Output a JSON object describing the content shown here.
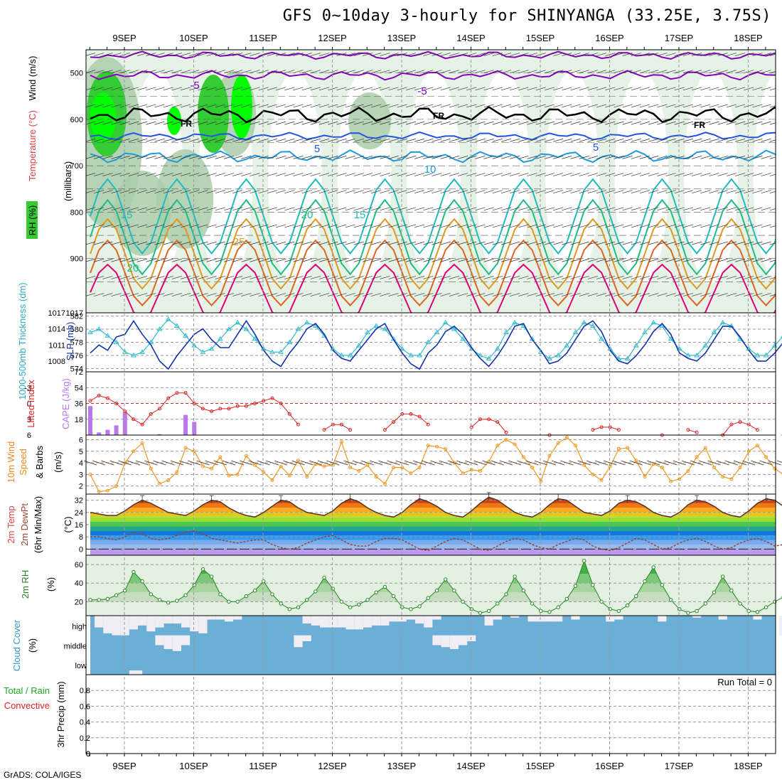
{
  "header": {
    "title": "GFS 0~10day 3-hourly for SHINYANGA (33.25E, 3.75S)",
    "footer": "GrADS: COLA/IGES"
  },
  "date_labels": [
    "9SEP",
    "10SEP",
    "11SEP",
    "12SEP",
    "13SEP",
    "14SEP",
    "15SEP",
    "16SEP",
    "17SEP",
    "18SEP"
  ],
  "panel_labels": {
    "p1_rh": "RH (%)",
    "p1_temp": "Temperature (°C)",
    "p1_wind": "Wind (m/s)",
    "p1_mb": "(millibars)",
    "p2_thk": "1000-500mb Thickness (dm)",
    "p2_slp": "SLP (mb)",
    "p3_li": "Lifted Index",
    "p3_cape": "CAPE (J/kg)",
    "p4_a": "10m Wind",
    "p4_b": "Speed",
    "p4_c": "& Barbs",
    "p4_unit": "(m/s)",
    "p5_a": "2m Temp",
    "p5_b": "2m DewPt",
    "p5_c": "(6hr Min/Max)",
    "p5_unit": "(°C)",
    "p6_a": "2m RH",
    "p6_unit": "(%)",
    "p7_a": "Cloud Cover",
    "p7_unit": "(%)",
    "p8_a": "Total / Rain",
    "p8_b": "Convective",
    "p8_unit": "3hr Precip (mm)"
  },
  "run_total": "Run Total = 0",
  "chart_data": [
    {
      "type": "heatmap",
      "name_hint": "pressure-time cross section",
      "y_ticks": [
        "500",
        "600",
        "700",
        "800",
        "900",
        "1017"
      ],
      "ylim": [
        1017,
        450
      ],
      "contour_labels": [
        "-5",
        "-5",
        "FR",
        "FR",
        "FR",
        "5",
        "5",
        "10",
        "15",
        "15",
        "20",
        "20",
        "25"
      ],
      "temp_levels_c": [
        -5,
        0,
        5,
        10,
        15,
        20,
        25
      ],
      "colors": {
        "rh_high": "#00ff00",
        "rh_mid": "#33cc33",
        "rh_low": "#aaccaa",
        "rh_bg": "#e6f2e6",
        "t_neg5": "#8800bb",
        "t_0": "#000000",
        "t_5": "#2255dd",
        "t_10": "#2299dd",
        "t_15": "#22bbbb",
        "t_20": "#22bb88",
        "t_25": "#dd9922",
        "t_30": "#dd6622",
        "t_35": "#dd0077"
      }
    },
    {
      "type": "line",
      "name_hint": "thickness and SLP",
      "y_ticks_left": [
        "574",
        "576",
        "578",
        "580",
        "582"
      ],
      "y_ticks_right": [
        "1008",
        "1011",
        "1014",
        "1017"
      ],
      "series": [
        {
          "name": "SLP (mb)",
          "color": "#1133aa",
          "values": [
            1009.5,
            1011,
            1010,
            1012.5,
            1013,
            1015.5,
            1013,
            1011,
            1008,
            1006.5,
            1009,
            1011,
            1013,
            1014,
            1012,
            1010.5,
            1010.5,
            1013,
            1015.5,
            1013,
            1010,
            1008,
            1007,
            1009.5,
            1011.5,
            1014,
            1015,
            1013,
            1010,
            1008.5,
            1008,
            1010,
            1012,
            1014,
            1015,
            1012,
            1009.5,
            1007.5,
            1006.5,
            1009.5,
            1011,
            1013.5,
            1014.5,
            1013,
            1010.5,
            1008.5,
            1007,
            1009,
            1011.5,
            1014.5,
            1015,
            1012,
            1010,
            1007.5,
            1008,
            1009.5,
            1012,
            1014.5,
            1015.5,
            1013.5,
            1010,
            1008,
            1007.5,
            1009,
            1011,
            1013.5,
            1015,
            1013,
            1009.5,
            1008.5,
            1008,
            1009.5,
            1012,
            1014.5,
            1014.5,
            1012.5,
            1010,
            1008,
            1008,
            1009.5,
            1011.5,
            1014,
            1015.5
          ]
        },
        {
          "name": "Thickness (dm)",
          "color": "#33bbcc",
          "values": [
            579.5,
            580,
            579,
            578,
            576.5,
            576,
            576.5,
            578,
            580,
            581.5,
            580.5,
            579,
            577.5,
            576.5,
            577,
            578.5,
            580,
            581,
            580,
            578.5,
            577,
            576.5,
            576.5,
            578,
            580,
            581,
            580.5,
            579,
            577,
            576,
            576,
            577.5,
            579.5,
            580.5,
            580,
            578.5,
            577,
            576,
            576,
            578,
            579.5,
            581,
            580,
            578.5,
            577,
            576,
            575.5,
            577,
            579.5,
            581,
            580.5,
            578.5,
            576.5,
            575.5,
            576,
            577.5,
            579.5,
            581,
            580.5,
            578.5,
            577,
            575.5,
            575.5,
            577.5,
            579.5,
            581,
            580.5,
            578.5,
            577,
            576,
            576,
            577.5,
            579.5,
            581,
            580.5,
            578.5,
            577,
            576,
            576,
            577.5,
            579,
            580,
            578.5
          ]
        }
      ]
    },
    {
      "type": "bar",
      "name_hint": "CAPE and Lifted Index",
      "y_ticks_left": [
        "-3",
        "0",
        "3",
        "6"
      ],
      "y_ticks_right": [
        "18",
        "36",
        "54",
        "72"
      ],
      "series": [
        {
          "name": "CAPE (J/kg)",
          "color": "#bb77ee",
          "values": [
            33,
            3,
            6,
            11,
            26,
            0,
            0,
            0,
            1,
            0,
            0,
            23,
            15,
            0,
            0,
            0,
            0,
            0,
            0,
            0,
            0,
            0,
            0,
            0,
            0,
            0,
            0,
            0,
            0,
            0,
            0,
            0,
            0,
            0,
            0,
            0,
            0,
            0,
            0,
            0,
            0,
            0,
            0,
            0,
            0,
            0,
            0,
            0,
            0,
            0,
            0,
            0,
            0,
            0,
            0,
            0,
            0,
            0,
            0,
            0,
            0,
            0,
            0,
            0,
            0,
            0,
            0,
            0,
            0,
            0,
            0,
            0,
            0,
            0,
            0,
            0,
            0,
            0,
            0,
            0,
            0,
            0,
            0
          ]
        },
        {
          "name": "Lifted Index",
          "color": "#dd2222",
          "values": [
            -0.5,
            -1.5,
            -1,
            0,
            1.5,
            3,
            4,
            2,
            1,
            -1,
            -2,
            -2,
            0,
            1,
            1.5,
            1,
            1,
            0.5,
            0.5,
            0,
            -0.5,
            -1,
            0,
            2,
            4,
            6.5,
            6.5,
            5,
            4,
            4,
            5,
            6.5,
            7,
            7,
            5,
            3.5,
            2,
            2,
            2.5,
            4,
            6.5,
            6.5,
            7,
            6.5,
            4.5,
            3,
            3,
            3.5,
            5.5,
            6.5,
            7,
            7,
            6.5,
            6,
            6.5,
            7,
            7.5,
            7,
            5,
            4.5,
            4.5,
            5,
            6.5,
            7,
            7,
            7,
            6,
            6.5,
            7,
            5,
            5.5,
            6.5,
            7,
            6,
            4,
            3.5,
            4,
            5,
            6.5,
            6.5,
            6,
            6.5,
            5.5
          ]
        }
      ]
    },
    {
      "type": "line",
      "name_hint": "10m wind",
      "y_ticks": [
        "2",
        "3",
        "4",
        "5",
        "6"
      ],
      "series": [
        {
          "name": "10m Wind Speed",
          "color": "#ee9922",
          "values": [
            3,
            1.5,
            1.6,
            2,
            4,
            5,
            5.7,
            3.5,
            2.2,
            2.5,
            3.2,
            5.3,
            5,
            3.7,
            3.5,
            4.5,
            2.9,
            3,
            4.6,
            3.8,
            3.2,
            2.5,
            3.7,
            2.9,
            4.2,
            2.8,
            3.9,
            3.7,
            3.8,
            5.8,
            3.6,
            3.3,
            3.8,
            2.8,
            2.2,
            3.6,
            3.6,
            3.1,
            3.6,
            5.5,
            5.4,
            5.2,
            4,
            3.1,
            3.4,
            3.3,
            4.1,
            5.5,
            6,
            5.6,
            4.5,
            3.6,
            2.4,
            4.6,
            5.7,
            6.2,
            5.5,
            3.8,
            3,
            2.5,
            3.7,
            5.2,
            5.3,
            4.2,
            2.8,
            3.9,
            3.6,
            2.4,
            2.6,
            3.3,
            4.5,
            5.3,
            3.6,
            2.8,
            2.6,
            3.6,
            5,
            5.5,
            4.5,
            3.5,
            3,
            4.8,
            5.8
          ]
        }
      ]
    },
    {
      "type": "area",
      "name_hint": "2m temperature and dewpoint",
      "y_ticks": [
        "0",
        "8",
        "16",
        "24",
        "32"
      ],
      "series": [
        {
          "name": "2m Temp",
          "color": "#553322",
          "values": [
            24,
            23,
            22,
            22,
            25,
            29,
            32,
            30,
            27,
            24,
            23,
            22,
            25,
            29,
            32,
            31,
            27,
            24,
            22,
            21,
            24,
            28,
            32,
            31,
            27,
            24,
            23,
            22,
            25,
            30,
            33,
            31,
            27,
            24,
            22,
            21,
            24,
            29,
            33,
            31,
            28,
            24,
            22,
            21,
            25,
            30,
            34,
            32,
            28,
            24,
            22,
            21,
            24,
            29,
            33,
            32,
            28,
            24,
            23,
            22,
            25,
            30,
            32,
            31,
            28,
            24,
            22,
            21,
            24,
            29,
            32,
            31,
            28,
            24,
            22,
            21,
            25,
            30,
            33,
            32,
            28,
            23,
            22
          ]
        },
        {
          "name": "2m DewPt",
          "color": "#994433",
          "values": [
            8,
            8,
            7,
            6,
            8,
            11,
            10,
            7,
            6,
            7,
            9,
            11,
            12,
            10,
            7,
            6,
            5,
            4,
            5,
            6,
            6,
            3,
            1,
            0,
            1,
            4,
            6,
            8,
            9,
            6,
            3,
            2,
            2,
            5,
            7,
            7,
            6,
            3,
            0,
            -1,
            2,
            5,
            7,
            6,
            3,
            0,
            -1,
            2,
            5,
            7,
            6,
            3,
            1,
            0,
            3,
            5,
            7,
            6,
            2,
            0,
            -1,
            1,
            4,
            7,
            6,
            3,
            0,
            1,
            4,
            6,
            7,
            5,
            2,
            0,
            1,
            4,
            6,
            7,
            5,
            2,
            3,
            6,
            8
          ]
        }
      ]
    },
    {
      "type": "area",
      "name_hint": "2m RH",
      "y_ticks": [
        "20",
        "40",
        "60"
      ],
      "series": [
        {
          "name": "2m RH",
          "color": "#228822",
          "values": [
            22,
            22,
            23,
            27,
            32,
            52,
            42,
            28,
            22,
            19,
            21,
            27,
            38,
            55,
            47,
            28,
            20,
            20,
            26,
            32,
            42,
            28,
            18,
            12,
            14,
            22,
            31,
            46,
            34,
            20,
            14,
            17,
            22,
            30,
            36,
            26,
            14,
            12,
            15,
            24,
            32,
            44,
            32,
            20,
            12,
            8,
            10,
            18,
            28,
            47,
            32,
            18,
            10,
            9,
            14,
            23,
            37,
            64,
            38,
            20,
            12,
            10,
            16,
            26,
            42,
            57,
            38,
            22,
            12,
            8,
            10,
            18,
            30,
            47,
            32,
            18,
            10,
            9,
            14,
            20,
            25,
            38,
            32
          ]
        }
      ]
    },
    {
      "type": "bar",
      "name_hint": "cloud cover",
      "y_ticks": [
        "high",
        "middle",
        "low"
      ],
      "colors": {
        "cover": "#6baed6",
        "clear": "#f0eef4"
      }
    },
    {
      "type": "line",
      "name_hint": "3hr precip",
      "y_ticks": [
        "0",
        "0.2",
        "0.4",
        "0.6",
        "0.8"
      ],
      "series": [
        {
          "name": "Total / Rain",
          "values": [
            0
          ]
        }
      ]
    }
  ]
}
